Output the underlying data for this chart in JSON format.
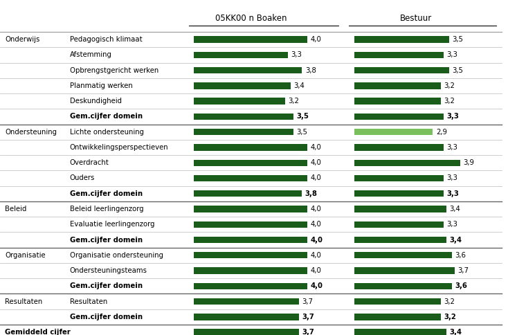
{
  "title1": "05KK00 n Boaken",
  "title2": "Bestuur",
  "rows": [
    {
      "category": "Onderwijs",
      "label": "Pedagogisch klimaat",
      "val1": 4.0,
      "val2": 3.5,
      "val2_color": "#1a5c1a",
      "bold": false,
      "is_total": false
    },
    {
      "category": "",
      "label": "Afstemming",
      "val1": 3.3,
      "val2": 3.3,
      "val2_color": "#1a5c1a",
      "bold": false,
      "is_total": false
    },
    {
      "category": "",
      "label": "Opbrengstgericht werken",
      "val1": 3.8,
      "val2": 3.5,
      "val2_color": "#1a5c1a",
      "bold": false,
      "is_total": false
    },
    {
      "category": "",
      "label": "Planmatig werken",
      "val1": 3.4,
      "val2": 3.2,
      "val2_color": "#1a5c1a",
      "bold": false,
      "is_total": false
    },
    {
      "category": "",
      "label": "Deskundigheid",
      "val1": 3.2,
      "val2": 3.2,
      "val2_color": "#1a5c1a",
      "bold": false,
      "is_total": false
    },
    {
      "category": "",
      "label": "Gem.cijfer domein",
      "val1": 3.5,
      "val2": 3.3,
      "val2_color": "#1a5c1a",
      "bold": true,
      "is_total": false
    },
    {
      "category": "Ondersteuning",
      "label": "Lichte ondersteuning",
      "val1": 3.5,
      "val2": 2.9,
      "val2_color": "#7abf5e",
      "bold": false,
      "is_total": false
    },
    {
      "category": "",
      "label": "Ontwikkelingsperspectieven",
      "val1": 4.0,
      "val2": 3.3,
      "val2_color": "#1a5c1a",
      "bold": false,
      "is_total": false
    },
    {
      "category": "",
      "label": "Overdracht",
      "val1": 4.0,
      "val2": 3.9,
      "val2_color": "#1a5c1a",
      "bold": false,
      "is_total": false
    },
    {
      "category": "",
      "label": "Ouders",
      "val1": 4.0,
      "val2": 3.3,
      "val2_color": "#1a5c1a",
      "bold": false,
      "is_total": false
    },
    {
      "category": "",
      "label": "Gem.cijfer domein",
      "val1": 3.8,
      "val2": 3.3,
      "val2_color": "#1a5c1a",
      "bold": true,
      "is_total": false
    },
    {
      "category": "Beleid",
      "label": "Beleid leerlingenzorg",
      "val1": 4.0,
      "val2": 3.4,
      "val2_color": "#1a5c1a",
      "bold": false,
      "is_total": false
    },
    {
      "category": "",
      "label": "Evaluatie leerlingenzorg",
      "val1": 4.0,
      "val2": 3.3,
      "val2_color": "#1a5c1a",
      "bold": false,
      "is_total": false
    },
    {
      "category": "",
      "label": "Gem.cijfer domein",
      "val1": 4.0,
      "val2": 3.4,
      "val2_color": "#1a5c1a",
      "bold": true,
      "is_total": false
    },
    {
      "category": "Organisatie",
      "label": "Organisatie ondersteuning",
      "val1": 4.0,
      "val2": 3.6,
      "val2_color": "#1a5c1a",
      "bold": false,
      "is_total": false
    },
    {
      "category": "",
      "label": "Ondersteuningsteams",
      "val1": 4.0,
      "val2": 3.7,
      "val2_color": "#1a5c1a",
      "bold": false,
      "is_total": false
    },
    {
      "category": "",
      "label": "Gem.cijfer domein",
      "val1": 4.0,
      "val2": 3.6,
      "val2_color": "#1a5c1a",
      "bold": true,
      "is_total": false
    },
    {
      "category": "Resultaten",
      "label": "Resultaten",
      "val1": 3.7,
      "val2": 3.2,
      "val2_color": "#1a5c1a",
      "bold": false,
      "is_total": false
    },
    {
      "category": "",
      "label": "Gem.cijfer domein",
      "val1": 3.7,
      "val2": 3.2,
      "val2_color": "#1a5c1a",
      "bold": true,
      "is_total": false
    },
    {
      "category": "Gemiddeld cijfer",
      "label": "",
      "val1": 3.7,
      "val2": 3.4,
      "val2_color": "#1a5c1a",
      "bold": true,
      "is_total": true
    }
  ],
  "bar_color1": "#1a5c1a",
  "bar_max": 4.0,
  "bg_color": "#ffffff",
  "text_color": "#000000"
}
